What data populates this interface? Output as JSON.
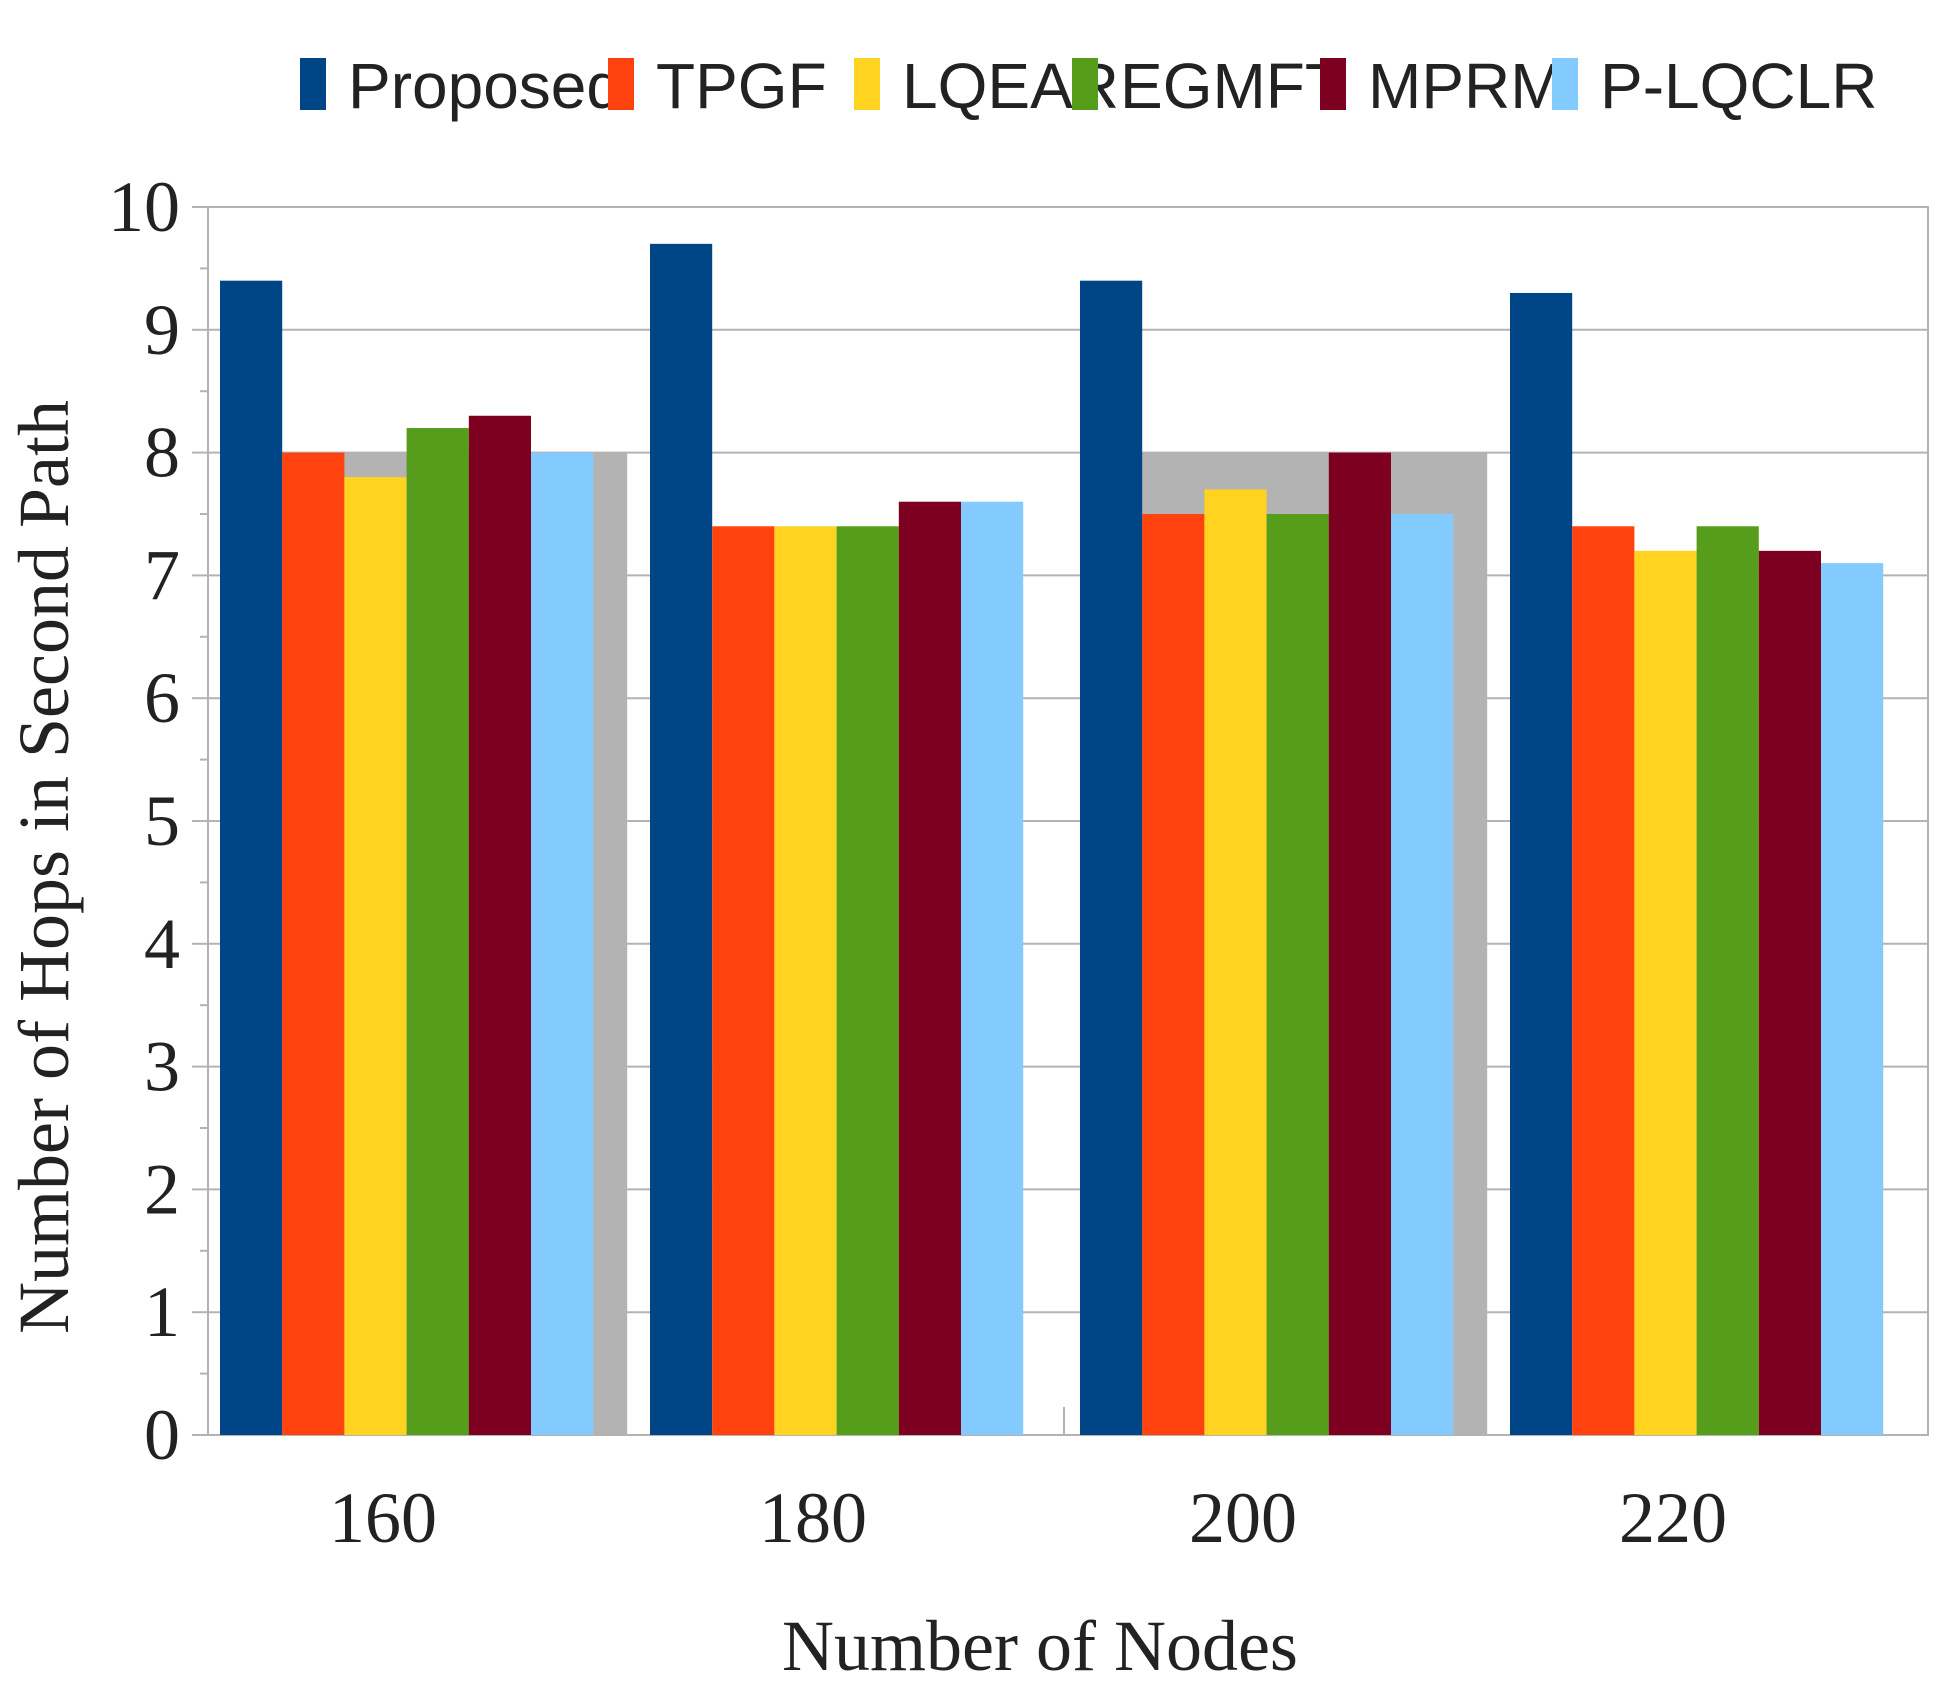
{
  "chart_data": {
    "type": "bar",
    "title": "",
    "xlabel": "Number of Nodes",
    "ylabel": "Number of Hops in Second Path",
    "categories": [
      "160",
      "180",
      "200",
      "220"
    ],
    "ylim": [
      0,
      10
    ],
    "yticks": [
      "0",
      "1",
      "2",
      "3",
      "4",
      "5",
      "6",
      "7",
      "8",
      "9",
      "10"
    ],
    "grid": true,
    "legend_position": "top",
    "series": [
      {
        "name": "Proposed",
        "color": "#004586",
        "values": [
          9.4,
          9.7,
          9.4,
          9.3
        ]
      },
      {
        "name": "TPGF",
        "color": "#ff420e",
        "values": [
          8.0,
          7.4,
          7.5,
          7.4
        ]
      },
      {
        "name": "LQEAR",
        "color": "#ffd320",
        "values": [
          7.8,
          7.4,
          7.7,
          7.2
        ]
      },
      {
        "name": "EGMFT",
        "color": "#579d1c",
        "values": [
          8.2,
          7.4,
          7.5,
          7.4
        ]
      },
      {
        "name": "MPRM",
        "color": "#7e0021",
        "values": [
          8.3,
          7.6,
          8.0,
          7.2
        ]
      },
      {
        "name": "P-LQCLR",
        "color": "#83caff",
        "values": [
          8.0,
          7.6,
          7.5,
          7.1
        ]
      }
    ],
    "background_bars": {
      "color": "#b3b3b3",
      "values": [
        8.0,
        null,
        8.0,
        null
      ]
    }
  }
}
